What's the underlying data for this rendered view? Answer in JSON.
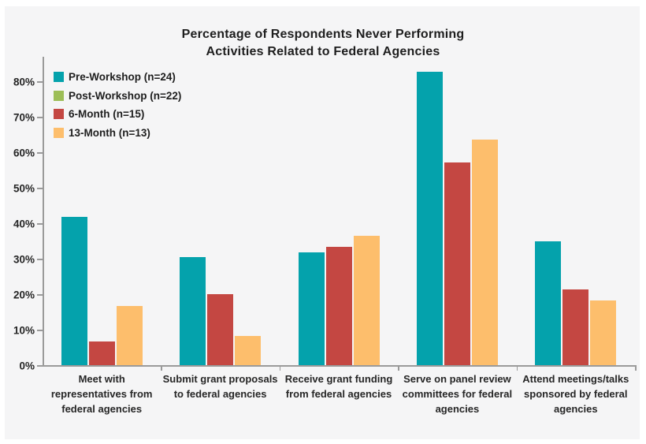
{
  "chart_data": {
    "type": "bar",
    "title": "Percentage of Respondents Never Performing Activities Related to Federal Agencies",
    "title_lines": [
      "Percentage of Respondents Never Performing",
      "Activities Related to Federal Agencies"
    ],
    "categories": [
      "Meet with\nrepresentatives from\nfederal agencies",
      "Submit grant proposals\nto federal agencies",
      "Receive grant funding\nfrom federal agencies",
      "Serve on panel review\ncommittees for federal\nagencies",
      "Attend meetings/talks\nsponsored by federal\nagencies"
    ],
    "series": [
      {
        "name": "Pre-Workshop (n=24)",
        "color": "#04A2AC",
        "values": [
          41.7,
          30.4,
          31.8,
          82.6,
          34.8
        ]
      },
      {
        "name": "Post-Workshop (n=22)",
        "color": "#9DBE57",
        "values": [
          0,
          0,
          0,
          0,
          0
        ]
      },
      {
        "name": "6-Month (n=15)",
        "color": "#C44742",
        "values": [
          6.7,
          20.0,
          33.3,
          57.1,
          21.4
        ]
      },
      {
        "name": "13-Month (n=13)",
        "color": "#FDBE6C",
        "values": [
          16.7,
          8.3,
          36.4,
          63.6,
          18.2
        ]
      }
    ],
    "y_ticks": [
      "0%",
      "10%",
      "20%",
      "30%",
      "40%",
      "50%",
      "60%",
      "70%",
      "80%"
    ],
    "ylim": [
      0,
      85
    ],
    "grid": false,
    "legend_position": "top-left-inside",
    "xlabel": "",
    "ylabel": ""
  },
  "colors": {
    "background": "#F5F5F6",
    "axis": "#9A9A9A",
    "text": "#1E1E1E"
  }
}
